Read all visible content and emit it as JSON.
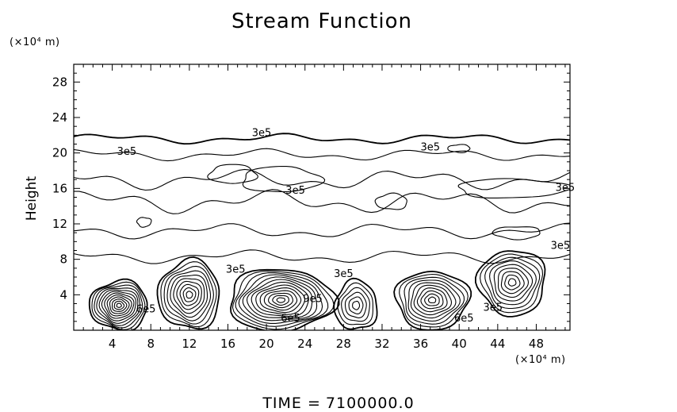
{
  "title": "Stream Function",
  "y_units": "(×10⁴ m)",
  "x_units": "(×10⁴ m)",
  "ylabel": "Height",
  "footer": {
    "time_label": "TIME  =",
    "time_value": "7100000.0"
  },
  "chart_data": {
    "type": "contour",
    "title": "Stream Function",
    "ylabel": "Height",
    "xlabel": "",
    "xlim": [
      0,
      51.5
    ],
    "ylim": [
      0,
      30
    ],
    "x_ticks": [
      4,
      8,
      12,
      16,
      20,
      24,
      28,
      32,
      36,
      40,
      44,
      48
    ],
    "y_ticks": [
      4,
      8,
      12,
      16,
      20,
      24,
      28
    ],
    "units": "×10⁴ m",
    "cells": [
      {
        "x": 4.7,
        "y": 2.8,
        "rx": 3.0,
        "ry": 2.8,
        "rings": 12
      },
      {
        "x": 12.0,
        "y": 4.0,
        "rx": 3.2,
        "ry": 3.9,
        "rings": 10
      },
      {
        "x": 21.5,
        "y": 3.4,
        "rx": 5.5,
        "ry": 3.5,
        "rings": 13
      },
      {
        "x": 29.3,
        "y": 2.8,
        "rx": 2.2,
        "ry": 2.8,
        "rings": 6
      },
      {
        "x": 37.2,
        "y": 3.4,
        "rx": 3.8,
        "ry": 3.3,
        "rings": 10
      },
      {
        "x": 45.5,
        "y": 5.4,
        "rx": 3.5,
        "ry": 3.7,
        "rings": 9
      }
    ],
    "annotations": [
      {
        "text": "3e5",
        "x": 5.5,
        "y": 19.8
      },
      {
        "text": "3e5",
        "x": 19.5,
        "y": 21.9
      },
      {
        "text": "3e5",
        "x": 23.0,
        "y": 15.4
      },
      {
        "text": "3e5",
        "x": 37.0,
        "y": 20.3
      },
      {
        "text": "3e5",
        "x": 51.0,
        "y": 15.7
      },
      {
        "text": "3e5",
        "x": 50.5,
        "y": 9.2
      },
      {
        "text": "3e5",
        "x": 16.8,
        "y": 6.5
      },
      {
        "text": "3e5",
        "x": 28.0,
        "y": 6.0
      },
      {
        "text": "6e5",
        "x": 7.5,
        "y": 2.0
      },
      {
        "text": "9e5",
        "x": 24.8,
        "y": 3.2
      },
      {
        "text": "6e5",
        "x": 22.5,
        "y": 1.0
      },
      {
        "text": "6e5",
        "x": 40.5,
        "y": 1.0
      },
      {
        "text": "3e5",
        "x": 43.5,
        "y": 2.2
      }
    ]
  }
}
